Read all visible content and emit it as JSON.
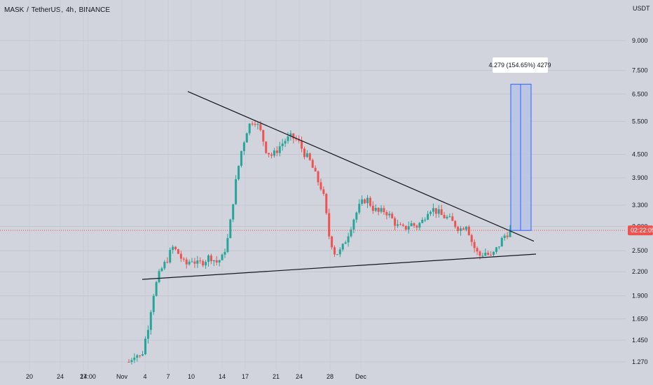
{
  "header": {
    "symbol": "MASK",
    "quote": "TetherUS",
    "interval": "4h",
    "exchange": "BINANCE"
  },
  "currency_label": "USDT",
  "current_price_tag": "02:22:05",
  "measure_label": "4.279 (154.65%) 4279",
  "colors": {
    "background": "#d1d4dc",
    "up": "#26a69a",
    "down": "#ef5350",
    "measure_fill": "#b7c3e6",
    "measure_stroke": "#2962ff",
    "trendline": "#131722",
    "price_line": "#ef5350"
  },
  "chart_data": {
    "type": "candlestick",
    "scale": "log",
    "y_ticks": [
      "9.000",
      "7.500",
      "6.500",
      "5.500",
      "4.500",
      "3.900",
      "3.300",
      "2.900",
      "2.500",
      "2.200",
      "1.900",
      "1.650",
      "1.450",
      "1.270"
    ],
    "x_ticks": [
      "20",
      "24",
      "27",
      "14:00",
      "Nov",
      "4",
      "7",
      "10",
      "14",
      "17",
      "21",
      "24",
      "28",
      "Dec"
    ],
    "ohlc_close_path": [
      1.27,
      1.34,
      1.3,
      1.55,
      1.95,
      2.2,
      2.35,
      2.55,
      2.45,
      2.28,
      2.38,
      2.3,
      2.35,
      2.42,
      2.33,
      2.4,
      2.75,
      3.7,
      4.6,
      5.3,
      5.6,
      5.2,
      4.6,
      4.45,
      4.7,
      4.9,
      5.0,
      4.9,
      4.55,
      4.3,
      3.9,
      3.6,
      2.75,
      2.45,
      2.5,
      2.75,
      3.05,
      3.3,
      3.45,
      3.25,
      3.15,
      3.2,
      3.05,
      2.9,
      2.85,
      2.95,
      2.9,
      3.0,
      3.25,
      3.2,
      3.1,
      3.05,
      2.95,
      2.85,
      2.95,
      2.6,
      2.42,
      2.48,
      2.4,
      2.55,
      2.73,
      2.83
    ],
    "resistance_line": {
      "from": [
        "Oct 31",
        6.6
      ],
      "to": [
        "Nov 25",
        2.65
      ]
    },
    "support_line": {
      "from": [
        "Oct 27",
        2.1
      ],
      "to": [
        "Nov 25",
        2.45
      ]
    },
    "current_price": 2.83,
    "measure_target": 6.9
  }
}
